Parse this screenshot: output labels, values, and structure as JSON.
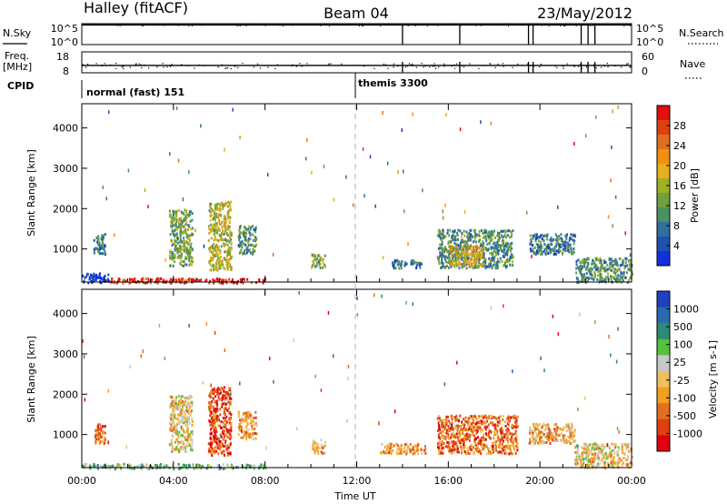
{
  "header": {
    "station": "Halley (fitACF)",
    "beam": "Beam 04",
    "date": "23/May/2012"
  },
  "panel_labels": {
    "nsky": "N.Sky",
    "nsky_hi": "10^5",
    "nsky_lo": "10^0",
    "freq": "Freq.",
    "freq_unit": "[MHz]",
    "freq_hi": "18",
    "freq_lo": "8",
    "cpid": "CPID",
    "nsearch": "N.Search",
    "nsearch_hi": "10^5",
    "nsearch_lo": "10^0",
    "nave": "Nave",
    "nave_hi": "60",
    "nave_lo": "0"
  },
  "colors": {
    "nsky_line": "#000000",
    "cursor": "#b0b0b0",
    "ground_scatter": "#808080"
  },
  "chart_data": [
    {
      "type": "line",
      "name": "N.Sky / N.Search",
      "ylim": [
        0,
        5
      ],
      "yscale": "log10",
      "x": [
        0,
        24
      ],
      "series": [
        {
          "name": "N.Sky",
          "values": [
            4.7,
            4.7
          ]
        }
      ],
      "drops_at_hours": [
        14.0,
        16.5,
        19.5,
        19.7,
        21.8,
        22.1,
        22.4
      ]
    },
    {
      "type": "line",
      "name": "Freq / Nave",
      "ylim": [
        8,
        18
      ],
      "series": [
        {
          "name": "Freq",
          "values": [
            11.5,
            11.5
          ]
        }
      ],
      "drops_at_hours": [
        14.0,
        16.5,
        19.5,
        19.7,
        21.8,
        22.1,
        22.4
      ]
    },
    {
      "type": "table",
      "name": "CPID",
      "segments": [
        {
          "label": "normal (fast) 151",
          "start": 0,
          "end": 12
        },
        {
          "label": "themis 3300",
          "start": 12,
          "end": 24
        }
      ]
    },
    {
      "type": "heatmap",
      "name": "Power",
      "ylabel": "Slant Range [km]",
      "yticks": [
        1000,
        2000,
        3000,
        4000
      ],
      "ylim": [
        180,
        4600
      ],
      "xlim": [
        0,
        24
      ],
      "colorbar_label": "Power [dB]",
      "colorbar_ticks": [
        "28",
        "24",
        "20",
        "16",
        "12",
        "8",
        "4"
      ],
      "colorbar_colors": [
        "#e01010",
        "#e04010",
        "#e07020",
        "#f09010",
        "#e8b020",
        "#a0b020",
        "#70a040",
        "#4a9060",
        "#3070a0",
        "#2050b0",
        "#1030e0"
      ],
      "clusters": [
        {
          "x": [
            0.0,
            1.2
          ],
          "y": [
            180,
            420
          ],
          "level": 10
        },
        {
          "x": [
            1.2,
            8.0
          ],
          "y": [
            180,
            300
          ],
          "level": 0
        },
        {
          "x": [
            0.5,
            1.0
          ],
          "y": [
            900,
            1400
          ],
          "level": 8
        },
        {
          "x": [
            3.8,
            4.8
          ],
          "y": [
            600,
            2000
          ],
          "level": 6
        },
        {
          "x": [
            5.5,
            6.5
          ],
          "y": [
            500,
            2200
          ],
          "level": 5
        },
        {
          "x": [
            6.8,
            7.6
          ],
          "y": [
            900,
            1600
          ],
          "level": 7
        },
        {
          "x": [
            10.0,
            10.6
          ],
          "y": [
            550,
            900
          ],
          "level": 6
        },
        {
          "x": [
            13.5,
            14.8
          ],
          "y": [
            550,
            750
          ],
          "level": 8
        },
        {
          "x": [
            15.5,
            18.8
          ],
          "y": [
            550,
            1500
          ],
          "level": 7
        },
        {
          "x": [
            16.0,
            17.5
          ],
          "y": [
            600,
            1100
          ],
          "level": 4
        },
        {
          "x": [
            19.5,
            21.5
          ],
          "y": [
            900,
            1400
          ],
          "level": 8
        },
        {
          "x": [
            21.5,
            24.0
          ],
          "y": [
            200,
            800
          ],
          "level": 7
        }
      ]
    },
    {
      "type": "heatmap",
      "name": "Velocity",
      "ylabel": "Slant Range [km]",
      "yticks": [
        1000,
        2000,
        3000,
        4000
      ],
      "ylim": [
        180,
        4600
      ],
      "xlim": [
        0,
        24
      ],
      "colorbar_label": "Velocity [m s-1]",
      "colorbar_ticks": [
        "1000",
        "500",
        "100",
        "25",
        "-25",
        "-100",
        "-500",
        "-1000"
      ],
      "colorbar_colors": [
        "#2040c0",
        "#2a6ab0",
        "#2e8a70",
        "#56c040",
        "#c8c8c8",
        "#f0c060",
        "#f0a020",
        "#e07020",
        "#e04010",
        "#e00010"
      ],
      "clusters": [
        {
          "x": [
            0.0,
            8.0
          ],
          "y": [
            180,
            300
          ],
          "level": 3
        },
        {
          "x": [
            0.5,
            1.0
          ],
          "y": [
            800,
            1300
          ],
          "level": 7
        },
        {
          "x": [
            3.8,
            4.8
          ],
          "y": [
            600,
            2000
          ],
          "level": 5
        },
        {
          "x": [
            5.5,
            6.5
          ],
          "y": [
            500,
            2200
          ],
          "level": 8
        },
        {
          "x": [
            6.8,
            7.6
          ],
          "y": [
            900,
            1600
          ],
          "level": 6
        },
        {
          "x": [
            10.0,
            10.6
          ],
          "y": [
            550,
            900
          ],
          "level": 6
        },
        {
          "x": [
            13.0,
            15.0
          ],
          "y": [
            550,
            800
          ],
          "level": 6
        },
        {
          "x": [
            15.5,
            19.0
          ],
          "y": [
            550,
            1500
          ],
          "level": 7
        },
        {
          "x": [
            19.5,
            21.5
          ],
          "y": [
            800,
            1300
          ],
          "level": 6
        },
        {
          "x": [
            21.5,
            24.0
          ],
          "y": [
            200,
            800
          ],
          "level": 5
        }
      ]
    }
  ],
  "xaxis": {
    "label": "Time UT",
    "ticks": [
      "00:00",
      "04:00",
      "08:00",
      "12:00",
      "16:00",
      "20:00",
      "00:00"
    ]
  }
}
